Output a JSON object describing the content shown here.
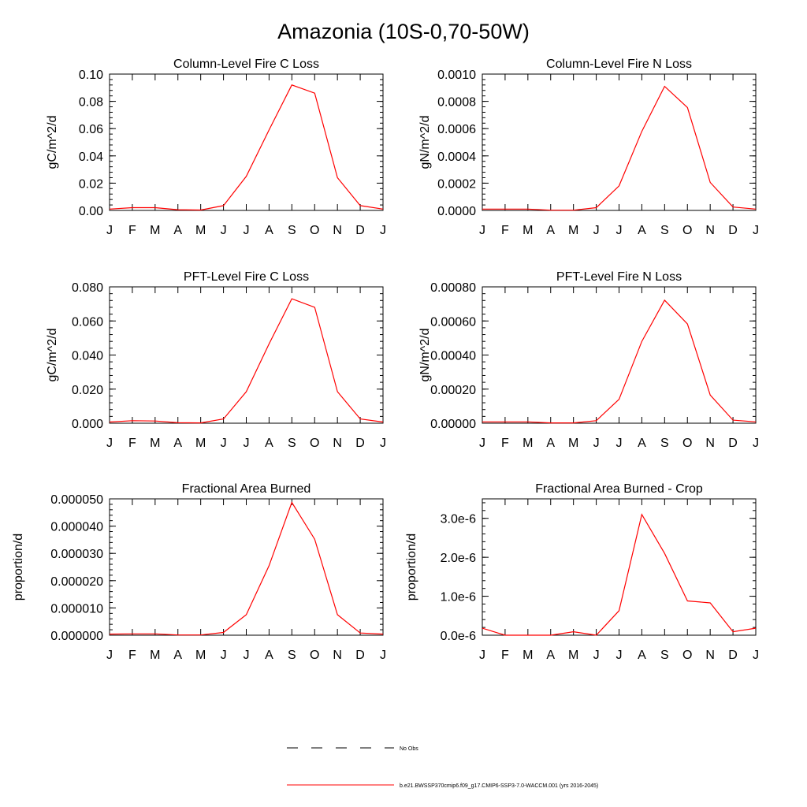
{
  "figure_title": "Amazonia (10S-0,70-50W)",
  "chart_data": [
    {
      "type": "line",
      "title": "Column-Level Fire C Loss",
      "ylabel": "gC/m^2/d",
      "xlabel": "",
      "categories": [
        "J",
        "F",
        "M",
        "A",
        "M",
        "J",
        "J",
        "A",
        "S",
        "O",
        "N",
        "D",
        "J"
      ],
      "ylim": [
        0,
        0.1
      ],
      "yticks": [
        0,
        0.02,
        0.04,
        0.06,
        0.08,
        0.1
      ],
      "ytick_labels": [
        "0.00",
        "0.02",
        "0.04",
        "0.06",
        "0.08",
        "0.10"
      ],
      "series": [
        {
          "name": "b.e21.BWSSP370cmip6.f09_g17.CMIP6-SSP3-7.0-WACCM.001 (yrs 2016-2045)",
          "color": "#ff0000",
          "values": [
            0.001,
            0.002,
            0.002,
            0.0005,
            0.0003,
            0.0035,
            0.025,
            0.059,
            0.092,
            0.086,
            0.024,
            0.0035,
            0.001
          ]
        }
      ]
    },
    {
      "type": "line",
      "title": "Column-Level Fire N Loss",
      "ylabel": "gN/m^2/d",
      "xlabel": "",
      "categories": [
        "J",
        "F",
        "M",
        "A",
        "M",
        "J",
        "J",
        "A",
        "S",
        "O",
        "N",
        "D",
        "J"
      ],
      "ylim": [
        0,
        0.001
      ],
      "yticks": [
        0,
        0.0002,
        0.0004,
        0.0006,
        0.0008,
        0.001
      ],
      "ytick_labels": [
        "0.0000",
        "0.0002",
        "0.0004",
        "0.0006",
        "0.0008",
        "0.0010"
      ],
      "series": [
        {
          "name": "b.e21.BWSSP370cmip6.f09_g17.CMIP6-SSP3-7.0-WACCM.001 (yrs 2016-2045)",
          "color": "#ff0000",
          "values": [
            1e-05,
            1e-05,
            1e-05,
            2e-06,
            2e-06,
            2e-05,
            0.00018,
            0.00058,
            0.00091,
            0.000755,
            0.000205,
            2.5e-05,
            1e-05
          ]
        }
      ]
    },
    {
      "type": "line",
      "title": "PFT-Level Fire C Loss",
      "ylabel": "gC/m^2/d",
      "xlabel": "",
      "categories": [
        "J",
        "F",
        "M",
        "A",
        "M",
        "J",
        "J",
        "A",
        "S",
        "O",
        "N",
        "D",
        "J"
      ],
      "ylim": [
        0,
        0.08
      ],
      "yticks": [
        0,
        0.02,
        0.04,
        0.06,
        0.08
      ],
      "ytick_labels": [
        "0.000",
        "0.020",
        "0.040",
        "0.060",
        "0.080"
      ],
      "series": [
        {
          "name": "b.e21.BWSSP370cmip6.f09_g17.CMIP6-SSP3-7.0-WACCM.001 (yrs 2016-2045)",
          "color": "#ff0000",
          "values": [
            0.0007,
            0.0015,
            0.0013,
            0.0003,
            0.0002,
            0.0025,
            0.0185,
            0.0465,
            0.073,
            0.068,
            0.0185,
            0.0025,
            0.0007
          ]
        }
      ]
    },
    {
      "type": "line",
      "title": "PFT-Level Fire N Loss",
      "ylabel": "gN/m^2/d",
      "xlabel": "",
      "categories": [
        "J",
        "F",
        "M",
        "A",
        "M",
        "J",
        "J",
        "A",
        "S",
        "O",
        "N",
        "D",
        "J"
      ],
      "ylim": [
        0,
        0.0008
      ],
      "yticks": [
        0,
        0.0002,
        0.0004,
        0.0006,
        0.0008
      ],
      "ytick_labels": [
        "0.00000",
        "0.00020",
        "0.00040",
        "0.00060",
        "0.00080"
      ],
      "series": [
        {
          "name": "b.e21.BWSSP370cmip6.f09_g17.CMIP6-SSP3-7.0-WACCM.001 (yrs 2016-2045)",
          "color": "#ff0000",
          "values": [
            8e-06,
            8e-06,
            8e-06,
            2e-06,
            2e-06,
            1.5e-05,
            0.00014,
            0.00048,
            0.000722,
            0.000582,
            0.000165,
            1.8e-05,
            8e-06
          ]
        }
      ]
    },
    {
      "type": "line",
      "title": "Fractional Area Burned",
      "ylabel": "proportion/d",
      "xlabel": "",
      "categories": [
        "J",
        "F",
        "M",
        "A",
        "M",
        "J",
        "J",
        "A",
        "S",
        "O",
        "N",
        "D",
        "J"
      ],
      "ylim": [
        0,
        5e-05
      ],
      "yticks": [
        0,
        1e-05,
        2e-05,
        3e-05,
        4e-05,
        5e-05
      ],
      "ytick_labels": [
        "0.000000",
        "0.000010",
        "0.000020",
        "0.000030",
        "0.000040",
        "0.000050"
      ],
      "series": [
        {
          "name": "b.e21.BWSSP370cmip6.f09_g17.CMIP6-SSP3-7.0-WACCM.001 (yrs 2016-2045)",
          "color": "#ff0000",
          "values": [
            4e-07,
            5e-07,
            5e-07,
            1e-07,
            1e-07,
            1e-06,
            7.5e-06,
            2.55e-05,
            4.87e-05,
            3.52e-05,
            7.5e-06,
            8e-07,
            4e-07
          ]
        }
      ]
    },
    {
      "type": "line",
      "title": "Fractional Area Burned - Crop",
      "ylabel": "proportion/d",
      "xlabel": "",
      "categories": [
        "J",
        "F",
        "M",
        "A",
        "M",
        "J",
        "J",
        "A",
        "S",
        "O",
        "N",
        "D",
        "J"
      ],
      "ylim": [
        0,
        3.5e-06
      ],
      "yticks": [
        0,
        1e-06,
        2e-06,
        3e-06
      ],
      "ytick_labels": [
        "0.0e-6",
        "1.0e-6",
        "2.0e-6",
        "3.0e-6"
      ],
      "series": [
        {
          "name": "b.e21.BWSSP370cmip6.f09_g17.CMIP6-SSP3-7.0-WACCM.001 (yrs 2016-2045)",
          "color": "#ff0000",
          "values": [
            1.8e-07,
            0.0,
            0.0,
            0.0,
            9e-08,
            0.0,
            6.3e-07,
            3.1e-06,
            2.1e-06,
            8.8e-07,
            8.3e-07,
            9e-08,
            1.8e-07
          ]
        }
      ]
    }
  ],
  "legend": {
    "items": [
      {
        "label": "No Obs",
        "style": "dashed",
        "color": "#000000"
      },
      {
        "label": "b.e21.BWSSP370cmip6.f09_g17.CMIP6-SSP3-7.0-WACCM.001 (yrs 2016-2045)",
        "style": "solid",
        "color": "#ff0000"
      }
    ]
  }
}
